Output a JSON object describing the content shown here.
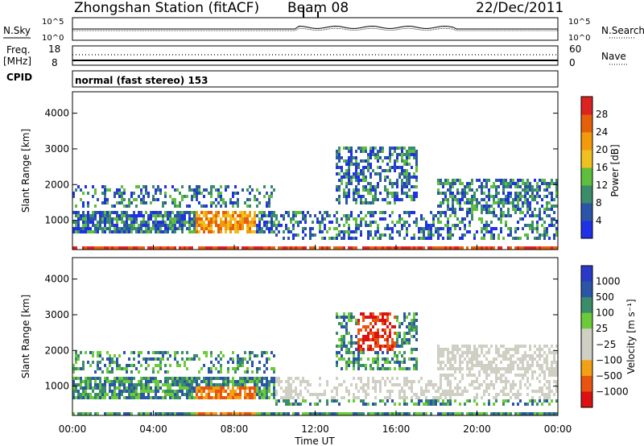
{
  "header": {
    "title": "Zhongshan Station (fitACF)",
    "beam": "Beam 08",
    "date": "22/Dec/2011"
  },
  "strip_labels": {
    "nsky": "N.Sky",
    "nsearch": "N.Search",
    "freq_line1": "Freq.",
    "freq_line2": "[MHz]",
    "nave": "Nave",
    "cpid": "CPID",
    "mode": "normal (fast stereo) 153"
  },
  "strip_ticks": {
    "noise_left": [
      "10^5",
      "10^0"
    ],
    "noise_right": [
      "10^5",
      "10^0"
    ],
    "freq_left": [
      "18",
      "8"
    ],
    "nave_right": [
      "60",
      "0"
    ]
  },
  "colors": {
    "power_scale": [
      "#1f30e6",
      "#2b55a8",
      "#3a8c6a",
      "#5fbf3c",
      "#f0c020",
      "#f29a0c",
      "#e6600a",
      "#dd2222"
    ],
    "velocity_scale": [
      "#dd1111",
      "#e85510",
      "#f2a014",
      "#cfcfc4",
      "#cfcfc4",
      "#6bcb38",
      "#3a8c6a",
      "#2b55a8",
      "#2a3ac8"
    ]
  },
  "chart_data": [
    {
      "type": "heatmap",
      "name": "power",
      "ylabel": "Slant Range [km]",
      "yticks": [
        "1000",
        "2000",
        "3000",
        "4000"
      ],
      "ylim": [
        180,
        4600
      ],
      "xlim": [
        0,
        24
      ],
      "colorbar_label": "Power [dB]",
      "colorbar_ticks": [
        "4",
        "8",
        "12",
        "16",
        "20",
        "24",
        "28"
      ],
      "colorbar_range": [
        0,
        30
      ]
    },
    {
      "type": "heatmap",
      "name": "velocity",
      "ylabel": "Slant Range [km]",
      "yticks": [
        "1000",
        "2000",
        "3000",
        "4000"
      ],
      "ylim": [
        180,
        4600
      ],
      "xlim": [
        0,
        24
      ],
      "colorbar_label": "Velocity [m s⁻¹]",
      "colorbar_ticks": [
        "1000",
        "500",
        "100",
        "25",
        "−25",
        "−100",
        "−500",
        "−1000"
      ]
    }
  ],
  "xaxis": {
    "ticks": [
      "00:00",
      "04:00",
      "08:00",
      "12:00",
      "16:00",
      "20:00",
      "00:00"
    ],
    "tick_hours": [
      0,
      4,
      8,
      12,
      16,
      20,
      24
    ],
    "label": "Time UT"
  }
}
